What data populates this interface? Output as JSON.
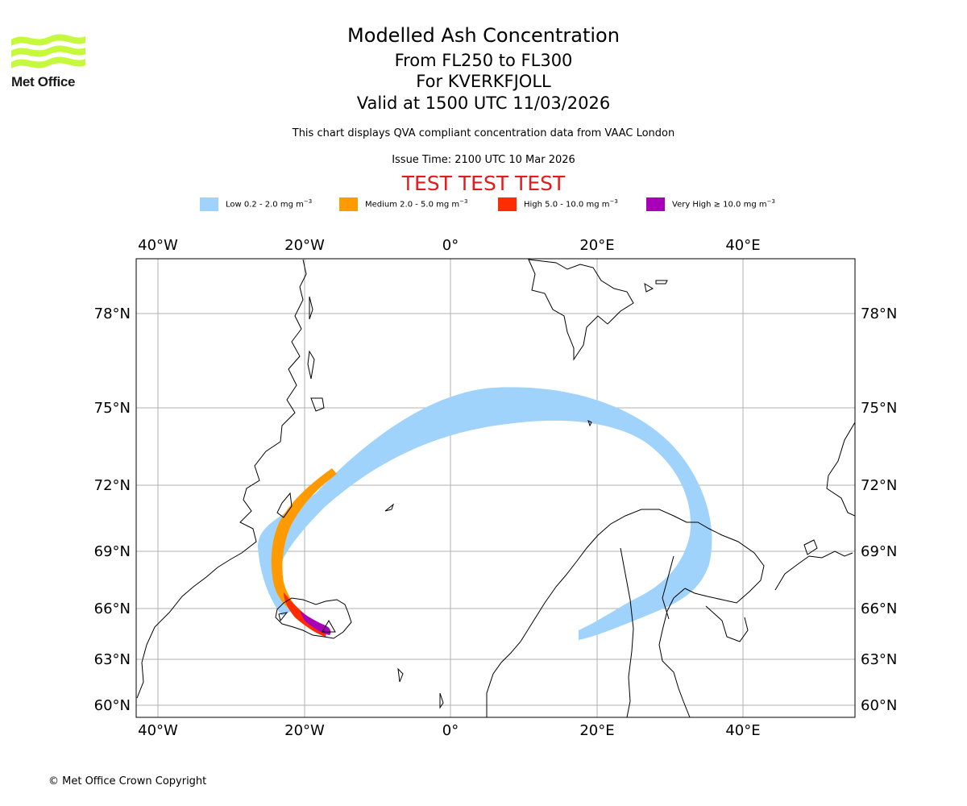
{
  "brand": {
    "logo_text": "Met Office"
  },
  "title": {
    "line1": "Modelled Ash Concentration",
    "line2": "From FL250 to FL300",
    "line3": "For KVERKFJOLL",
    "line4": "Valid at 1500 UTC 11/03/2026"
  },
  "subtitle": "This chart displays QVA compliant concentration data from VAAC London",
  "issue_time": "Issue Time: 2100 UTC 10 Mar 2026",
  "test_banner": "TEST TEST TEST",
  "legend": [
    {
      "label": "Low 0.2 - 2.0 mg m",
      "exp": "−3",
      "color": "#9fd3fc"
    },
    {
      "label": "Medium 2.0 - 5.0 mg m",
      "exp": "−3",
      "color": "#ff9a00"
    },
    {
      "label": "High 5.0 - 10.0 mg m",
      "exp": "−3",
      "color": "#ff2c00"
    },
    {
      "label": "Very High  ≥  10.0 mg m",
      "exp": "−3",
      "color": "#a800b8"
    }
  ],
  "map": {
    "lon_labels": [
      "40°W",
      "20°W",
      "0°",
      "20°E",
      "40°E"
    ],
    "lat_labels": [
      "78°N",
      "75°N",
      "72°N",
      "69°N",
      "66°N",
      "63°N",
      "60°N"
    ],
    "volcano": "KVERKFJOLL",
    "coastline_color": "#000000",
    "grid_color": "#b0b0b0"
  },
  "copyright": "© Met Office Crown Copyright"
}
